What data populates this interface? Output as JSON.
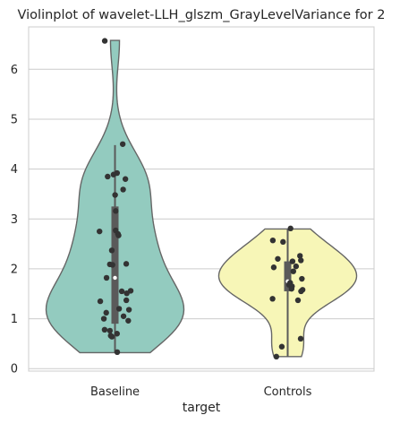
{
  "chart_data": {
    "type": "violin",
    "title": "Violinplot of wavelet-LLH_glszm_GrayLevelVariance for 2",
    "xlabel": "target",
    "ylabel": "",
    "categories": [
      "Baseline",
      "Controls"
    ],
    "ylim": [
      -0.05,
      6.85
    ],
    "yticks": [
      0,
      1,
      2,
      3,
      4,
      5,
      6
    ],
    "grid": "horizontal",
    "colors": {
      "Baseline": "#93cbbf",
      "Controls": "#f7f6b7",
      "outline": "#666666",
      "points": "#333333"
    },
    "violins": [
      {
        "category": "Baseline",
        "min": 0.32,
        "q1": 0.9,
        "median": 1.82,
        "q3": 3.25,
        "whisker_high": 4.48,
        "max": 6.58,
        "points": [
          6.57,
          4.5,
          3.92,
          3.89,
          3.85,
          3.8,
          3.59,
          3.48,
          3.16,
          2.77,
          2.75,
          2.7,
          2.67,
          2.37,
          2.1,
          2.09,
          2.08,
          1.82,
          1.56,
          1.55,
          1.51,
          1.37,
          1.35,
          1.2,
          1.18,
          1.12,
          1.05,
          1.0,
          0.96,
          0.78,
          0.76,
          0.7,
          0.66,
          0.64,
          0.33
        ]
      },
      {
        "category": "Controls",
        "min": 0.24,
        "q1": 1.55,
        "median": 1.75,
        "q3": 2.15,
        "whisker_high": 2.8,
        "max": 2.8,
        "points": [
          2.81,
          2.57,
          2.54,
          2.26,
          2.2,
          2.17,
          2.15,
          2.05,
          2.03,
          1.95,
          1.8,
          1.72,
          1.68,
          1.65,
          1.6,
          1.58,
          1.55,
          1.4,
          1.37,
          0.6,
          0.44,
          0.24
        ]
      }
    ]
  }
}
